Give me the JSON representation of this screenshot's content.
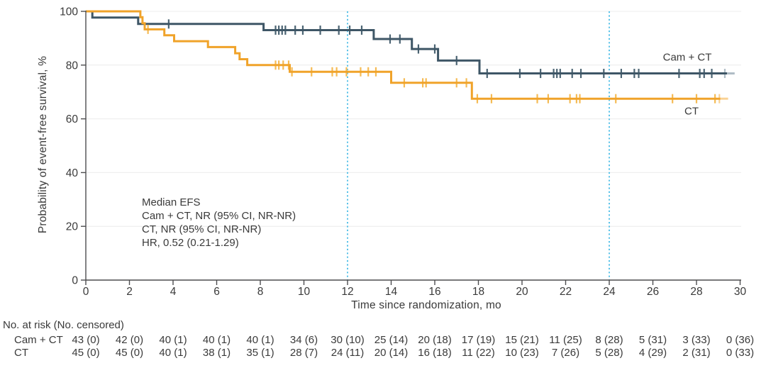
{
  "chart_data": {
    "type": "line",
    "subtype": "kaplan-meier-step",
    "title": "",
    "xlabel": "Time since randomization, mo",
    "ylabel": "Probability of event-free survival, %",
    "xlim": [
      0,
      30
    ],
    "ylim": [
      0,
      100
    ],
    "x_ticks": [
      0,
      2,
      4,
      6,
      8,
      10,
      12,
      14,
      16,
      18,
      20,
      22,
      24,
      26,
      28,
      30
    ],
    "y_ticks": [
      100,
      80,
      60,
      40,
      20,
      0
    ],
    "grid": "horizontal-light",
    "reference_lines_x": [
      12,
      24
    ],
    "series": [
      {
        "name": "Cam + CT",
        "color": "#3E5666",
        "censor_color": "#4A6372",
        "fade_color": "#AFBCC5",
        "steps": [
          [
            0,
            100
          ],
          [
            0.3,
            97.7
          ],
          [
            2.4,
            95.3
          ],
          [
            8.15,
            93.0
          ],
          [
            13.2,
            89.7
          ],
          [
            14.95,
            86.0
          ],
          [
            16.15,
            81.7
          ],
          [
            18.05,
            76.9
          ]
        ],
        "end": 29.4,
        "fade_end": 29.75,
        "censors": [
          [
            3.8,
            95.3
          ],
          [
            8.7,
            93.0
          ],
          [
            8.85,
            93.0
          ],
          [
            9.0,
            93.0
          ],
          [
            9.15,
            93.0
          ],
          [
            9.6,
            93.0
          ],
          [
            9.95,
            93.0
          ],
          [
            10.75,
            93.0
          ],
          [
            11.6,
            93.0
          ],
          [
            12.1,
            93.0
          ],
          [
            12.65,
            93.0
          ],
          [
            13.95,
            89.7
          ],
          [
            14.4,
            89.7
          ],
          [
            15.25,
            86.0
          ],
          [
            16.0,
            86.0
          ],
          [
            17.0,
            81.7
          ],
          [
            18.4,
            76.9
          ],
          [
            19.9,
            76.9
          ],
          [
            20.85,
            76.9
          ],
          [
            21.45,
            76.9
          ],
          [
            21.6,
            76.9
          ],
          [
            21.75,
            76.9
          ],
          [
            22.3,
            76.9
          ],
          [
            22.7,
            76.9
          ],
          [
            23.75,
            76.9
          ],
          [
            24.55,
            76.9
          ],
          [
            25.15,
            76.9
          ],
          [
            25.35,
            76.9
          ],
          [
            27.2,
            76.9
          ],
          [
            28.15,
            76.9
          ],
          [
            28.35,
            76.9
          ],
          [
            28.7,
            76.9
          ],
          [
            29.3,
            76.9
          ]
        ]
      },
      {
        "name": "CT",
        "color": "#F0A32A",
        "censor_color": "#F5BB55",
        "fade_color": "#F9D294",
        "steps": [
          [
            0,
            100
          ],
          [
            2.5,
            97.8
          ],
          [
            2.6,
            95.6
          ],
          [
            2.7,
            93.3
          ],
          [
            3.6,
            91.1
          ],
          [
            4.05,
            88.9
          ],
          [
            5.6,
            86.7
          ],
          [
            6.85,
            84.4
          ],
          [
            7.05,
            82.2
          ],
          [
            7.4,
            80.0
          ],
          [
            9.35,
            77.5
          ],
          [
            14.0,
            73.4
          ],
          [
            17.7,
            67.5
          ]
        ],
        "end": 29.1,
        "fade_end": 29.45,
        "censors": [
          [
            2.85,
            93.3
          ],
          [
            8.7,
            80.0
          ],
          [
            8.85,
            80.0
          ],
          [
            9.05,
            80.0
          ],
          [
            9.3,
            80.0
          ],
          [
            9.45,
            77.5
          ],
          [
            10.35,
            77.5
          ],
          [
            11.3,
            77.5
          ],
          [
            11.5,
            77.5
          ],
          [
            11.95,
            77.5
          ],
          [
            12.6,
            77.5
          ],
          [
            12.95,
            77.5
          ],
          [
            13.3,
            77.5
          ],
          [
            14.6,
            73.4
          ],
          [
            15.45,
            73.4
          ],
          [
            15.6,
            73.4
          ],
          [
            17.0,
            73.4
          ],
          [
            17.45,
            73.4
          ],
          [
            17.95,
            67.5
          ],
          [
            18.6,
            67.5
          ],
          [
            20.7,
            67.5
          ],
          [
            21.2,
            67.5
          ],
          [
            22.2,
            67.5
          ],
          [
            22.5,
            67.5
          ],
          [
            22.65,
            67.5
          ],
          [
            24.3,
            67.5
          ],
          [
            26.9,
            67.5
          ],
          [
            28.0,
            67.5
          ],
          [
            28.85,
            67.5
          ],
          [
            29.05,
            67.5
          ]
        ]
      }
    ],
    "legend_position": "end-of-line-labels"
  },
  "annotation": {
    "lines": [
      "Median EFS",
      "Cam + CT, NR (95% CI, NR-NR)",
      "CT, NR (95% CI, NR-NR)",
      "HR, 0.52 (0.21-1.29)"
    ]
  },
  "risk_table": {
    "title": "No. at risk (No. censored)",
    "times": [
      0,
      2,
      4,
      6,
      8,
      10,
      12,
      14,
      16,
      18,
      20,
      22,
      24,
      26,
      28,
      30
    ],
    "rows": [
      {
        "label": "Cam + CT",
        "counts": [
          "43 (0)",
          "42 (0)",
          "40 (1)",
          "40 (1)",
          "40 (1)",
          "34 (6)",
          "30 (10)",
          "25 (14)",
          "20 (18)",
          "17 (19)",
          "15 (21)",
          "11 (25)",
          "8 (28)",
          "5 (31)",
          "3 (33)",
          "0 (36)"
        ]
      },
      {
        "label": "CT",
        "counts": [
          "45 (0)",
          "45 (0)",
          "40 (1)",
          "38 (1)",
          "35 (1)",
          "28 (7)",
          "24 (11)",
          "20 (14)",
          "16 (18)",
          "11 (22)",
          "10 (23)",
          "7 (26)",
          "5 (28)",
          "4 (29)",
          "2 (31)",
          "0 (33)"
        ]
      }
    ]
  },
  "colors": {
    "cam_ct_line": "#3E5666",
    "ct_line": "#F0A32A",
    "reference_line": "#5CC3E9",
    "gridline": "#ECECEC",
    "axis": "#4D4D4F",
    "text": "#3A3A3A"
  }
}
